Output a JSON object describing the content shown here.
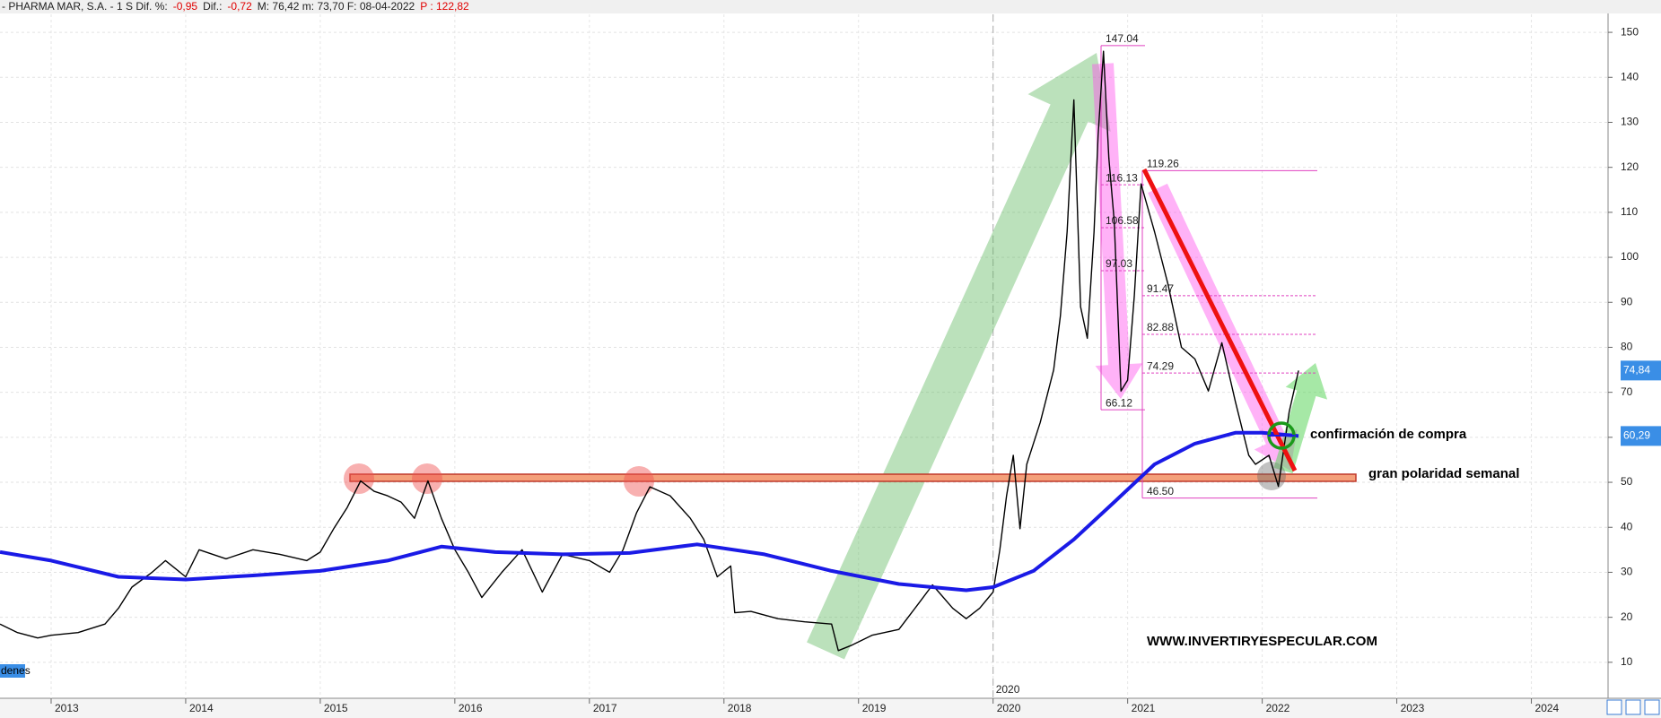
{
  "header": {
    "segments": [
      {
        "text": "- PHARMA MAR, S.A. -  1 S  Dif. %:",
        "color": "#222222"
      },
      {
        "text": "-0,95",
        "color": "#e00000"
      },
      {
        "text": "Dif.:",
        "color": "#222222"
      },
      {
        "text": "-0,72",
        "color": "#e00000"
      },
      {
        "text": "M: 76,42  m: 73,70  F: 08-04-2022",
        "color": "#222222"
      },
      {
        "text": "P : 122,82",
        "color": "#e00000"
      }
    ]
  },
  "chart_data": {
    "type": "line",
    "xlim": [
      2012.62,
      2024.57
    ],
    "ylim": [
      2,
      154
    ],
    "xticks": [
      2013,
      2014,
      2015,
      2016,
      2017,
      2018,
      2019,
      2020,
      2021,
      2022,
      2023,
      2024
    ],
    "yticks": [
      10,
      20,
      30,
      40,
      50,
      60,
      70,
      80,
      90,
      100,
      110,
      120,
      130,
      140,
      150
    ],
    "grid": true,
    "period_marker": 2020,
    "left_tag": "denes",
    "series": [
      {
        "color": "#000000",
        "x": [
          2012.62,
          2012.75,
          2012.9,
          2013.0,
          2013.2,
          2013.4,
          2013.5,
          2013.6,
          2013.75,
          2013.85,
          2014.0,
          2014.1,
          2014.3,
          2014.5,
          2014.7,
          2014.9,
          2015.0,
          2015.1,
          2015.2,
          2015.3,
          2015.4,
          2015.5,
          2015.6,
          2015.7,
          2015.8,
          2015.9,
          2016.0,
          2016.1,
          2016.2,
          2016.35,
          2016.5,
          2016.65,
          2016.8,
          2017.0,
          2017.15,
          2017.25,
          2017.35,
          2017.45,
          2017.6,
          2017.75,
          2017.85,
          2017.95,
          2018.05,
          2018.08,
          2018.2,
          2018.4,
          2018.6,
          2018.8,
          2018.85,
          2018.95,
          2019.1,
          2019.3,
          2019.45,
          2019.55,
          2019.7,
          2019.8,
          2019.9,
          2020.0,
          2020.05,
          2020.1,
          2020.15,
          2020.2,
          2020.25,
          2020.35,
          2020.45,
          2020.5,
          2020.55,
          2020.6,
          2020.65,
          2020.7,
          2020.75,
          2020.78,
          2020.82,
          2020.86,
          2020.9,
          2020.95,
          2021.0,
          2021.05,
          2021.1,
          2021.2,
          2021.3,
          2021.4,
          2021.5,
          2021.6,
          2021.7,
          2021.8,
          2021.9,
          2021.95,
          2022.05,
          2022.12,
          2022.2,
          2022.27
        ],
        "values": [
          18.5,
          16.6,
          15.4,
          16,
          16.6,
          18.5,
          22,
          26.7,
          30,
          32.6,
          29,
          35,
          33,
          35,
          34,
          32.6,
          34.5,
          39.7,
          44.4,
          50.3,
          48,
          47,
          45.6,
          42,
          50.3,
          42,
          35,
          30,
          24.4,
          30,
          35,
          25.6,
          34,
          32.6,
          30,
          35,
          43.2,
          49,
          47,
          42,
          37.3,
          29,
          31.4,
          21,
          21.3,
          19.7,
          19,
          18.5,
          12.6,
          13.8,
          16,
          17.3,
          23.2,
          27.2,
          22,
          19.7,
          22,
          25.6,
          35,
          47,
          56,
          39.7,
          54,
          63.3,
          75,
          87,
          105.7,
          135,
          89,
          82,
          105.7,
          127,
          145.8,
          122,
          108,
          70.3,
          72.7,
          91.5,
          116.3,
          105.7,
          94,
          80,
          77.4,
          70.3,
          81,
          68,
          56,
          54,
          56,
          49.1,
          65.6,
          74.84
        ]
      },
      {
        "color": "#1a1ae6",
        "x": [
          2012.62,
          2013.0,
          2013.5,
          2014.0,
          2014.5,
          2015.0,
          2015.5,
          2015.9,
          2016.3,
          2016.8,
          2017.3,
          2017.8,
          2018.3,
          2018.8,
          2019.3,
          2019.8,
          2020.0,
          2020.3,
          2020.6,
          2020.9,
          2021.2,
          2021.5,
          2021.8,
          2022.0,
          2022.27
        ],
        "values": [
          34.5,
          32.6,
          29,
          28.4,
          29.3,
          30.3,
          32.6,
          35.7,
          34.5,
          34,
          34.3,
          36.2,
          34,
          30.3,
          27.4,
          26,
          26.7,
          30.3,
          37.3,
          45.6,
          54,
          58.6,
          61,
          61,
          60.29
        ]
      }
    ],
    "price_tags": [
      {
        "value": 74.84,
        "label": "74,84"
      },
      {
        "value": 60.29,
        "label": "60,29"
      }
    ],
    "fib_first": [
      147.04,
      116.13,
      106.58,
      97.03,
      66.12
    ],
    "fib_second": [
      119.26,
      91.47,
      82.88,
      74.29,
      {
        "value": 46.5,
        "label": "46.50"
      }
    ],
    "annotations": [
      "confirmación de compra",
      "gran polaridad semanal",
      "WWW.INVERTIRYESPECULAR.COM"
    ]
  }
}
